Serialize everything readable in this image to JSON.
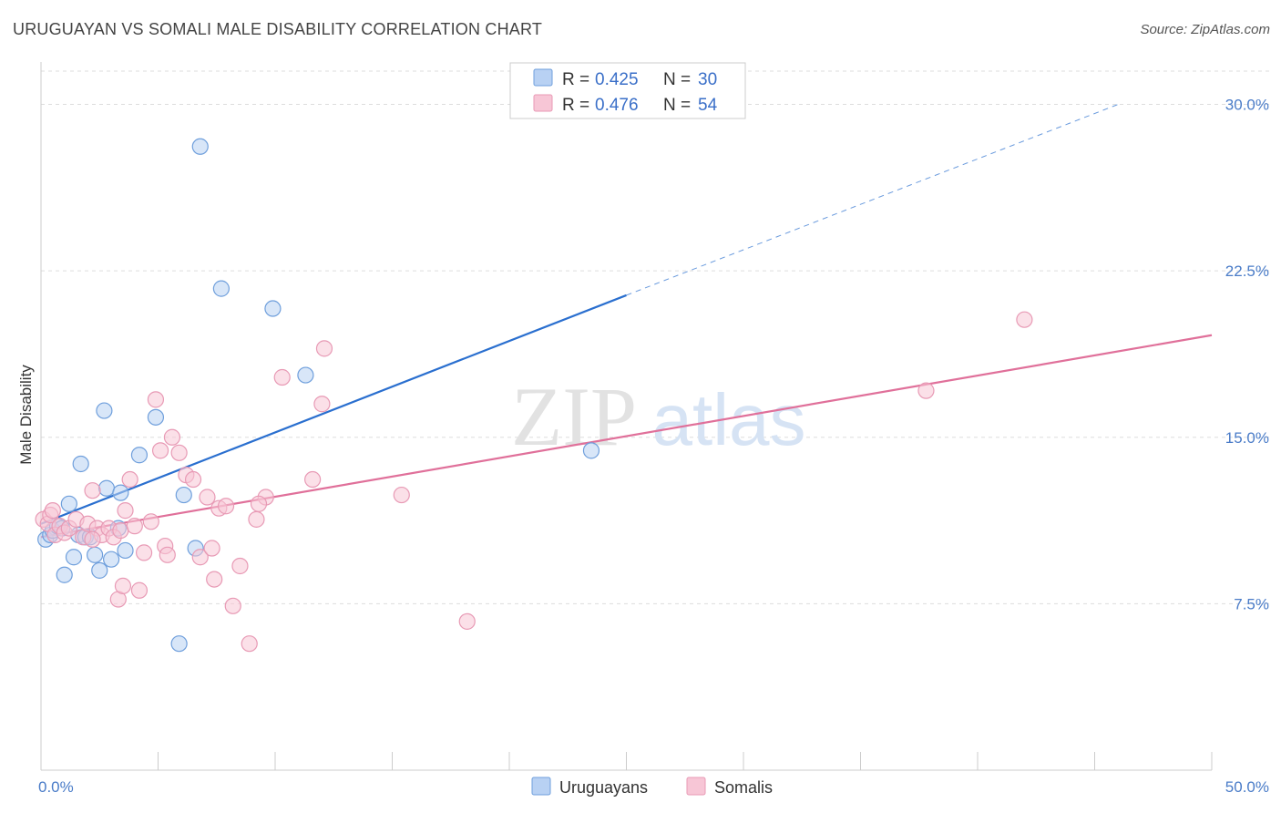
{
  "header": {
    "title": "URUGUAYAN VS SOMALI MALE DISABILITY CORRELATION CHART",
    "source": "Source: ZipAtlas.com"
  },
  "watermark": {
    "zip": "ZIP",
    "atlas": "atlas"
  },
  "colors": {
    "blue_fill": "#b8d1f3",
    "blue_stroke": "#6f9fdc",
    "blue_line": "#2a6fcf",
    "pink_fill": "#f7c6d6",
    "pink_stroke": "#e89ab5",
    "pink_line": "#e0709a",
    "grid": "#dddddd",
    "tick_label": "#4a7cc8"
  },
  "legend": {
    "rows": [
      {
        "r_label": "R = ",
        "r_value": "0.425",
        "n_label": "N = ",
        "n_value": "30"
      },
      {
        "r_label": "R = ",
        "r_value": "0.476",
        "n_label": "N = ",
        "n_value": "54"
      }
    ]
  },
  "bottom_legend": [
    "Uruguayans",
    "Somalis"
  ],
  "chart_data": {
    "type": "scatter",
    "title": "URUGUAYAN VS SOMALI MALE DISABILITY CORRELATION CHART",
    "xlabel": "",
    "ylabel": "Male Disability",
    "xlim": [
      0,
      50
    ],
    "ylim": [
      0,
      31.5
    ],
    "x_tick_labels": [
      {
        "value": 0,
        "label": "0.0%"
      },
      {
        "value": 50,
        "label": "50.0%"
      }
    ],
    "x_minor_ticks": [
      0,
      5,
      10,
      15,
      20,
      25,
      30,
      35,
      40,
      45,
      50
    ],
    "y_ticks": [
      {
        "value": 7.5,
        "label": "7.5%"
      },
      {
        "value": 15.0,
        "label": "15.0%"
      },
      {
        "value": 22.5,
        "label": "22.5%"
      },
      {
        "value": 30.0,
        "label": "30.0%"
      }
    ],
    "series": [
      {
        "name": "Uruguayans",
        "R": 0.425,
        "N": 30,
        "points": [
          [
            0.2,
            10.4
          ],
          [
            0.4,
            10.6
          ],
          [
            0.5,
            10.8
          ],
          [
            0.7,
            11.0
          ],
          [
            0.9,
            10.9
          ],
          [
            1.2,
            12.0
          ],
          [
            1.4,
            9.6
          ],
          [
            1.6,
            10.6
          ],
          [
            1.0,
            8.8
          ],
          [
            1.7,
            13.8
          ],
          [
            1.9,
            10.5
          ],
          [
            2.1,
            10.5
          ],
          [
            2.3,
            9.7
          ],
          [
            2.5,
            9.0
          ],
          [
            2.8,
            12.7
          ],
          [
            2.7,
            16.2
          ],
          [
            3.0,
            9.5
          ],
          [
            3.3,
            10.9
          ],
          [
            3.4,
            12.5
          ],
          [
            3.6,
            9.9
          ],
          [
            4.2,
            14.2
          ],
          [
            4.9,
            15.9
          ],
          [
            6.1,
            12.4
          ],
          [
            6.6,
            10.0
          ],
          [
            6.8,
            28.1
          ],
          [
            7.7,
            21.7
          ],
          [
            9.9,
            20.8
          ],
          [
            11.3,
            17.8
          ],
          [
            23.5,
            14.4
          ],
          [
            5.9,
            5.7
          ]
        ],
        "trend": {
          "x0": 0,
          "y0": 11.1,
          "x1": 25.0,
          "y1": 21.4,
          "dash_x1": 46.0,
          "dash_y1": 30.0
        }
      },
      {
        "name": "Somalis",
        "R": 0.476,
        "N": 54,
        "points": [
          [
            0.1,
            11.3
          ],
          [
            0.3,
            11.1
          ],
          [
            0.4,
            11.5
          ],
          [
            0.5,
            11.7
          ],
          [
            0.6,
            10.6
          ],
          [
            0.8,
            11.0
          ],
          [
            1.0,
            10.7
          ],
          [
            1.2,
            10.9
          ],
          [
            1.5,
            11.3
          ],
          [
            1.8,
            10.5
          ],
          [
            2.0,
            11.1
          ],
          [
            2.2,
            12.6
          ],
          [
            2.4,
            10.9
          ],
          [
            2.6,
            10.6
          ],
          [
            2.9,
            10.9
          ],
          [
            3.1,
            10.5
          ],
          [
            3.4,
            10.8
          ],
          [
            3.6,
            11.7
          ],
          [
            3.8,
            13.1
          ],
          [
            4.0,
            11.0
          ],
          [
            4.2,
            8.1
          ],
          [
            4.4,
            9.8
          ],
          [
            4.7,
            11.2
          ],
          [
            4.9,
            16.7
          ],
          [
            5.1,
            14.4
          ],
          [
            5.3,
            10.1
          ],
          [
            5.6,
            15.0
          ],
          [
            5.9,
            14.3
          ],
          [
            6.2,
            13.3
          ],
          [
            6.5,
            13.1
          ],
          [
            6.8,
            9.6
          ],
          [
            7.1,
            12.3
          ],
          [
            7.4,
            8.6
          ],
          [
            7.6,
            11.8
          ],
          [
            7.9,
            11.9
          ],
          [
            8.2,
            7.4
          ],
          [
            8.5,
            9.2
          ],
          [
            8.9,
            5.7
          ],
          [
            9.2,
            11.3
          ],
          [
            9.6,
            12.3
          ],
          [
            10.3,
            17.7
          ],
          [
            11.6,
            13.1
          ],
          [
            12.0,
            16.5
          ],
          [
            12.1,
            19.0
          ],
          [
            15.4,
            12.4
          ],
          [
            18.2,
            6.7
          ],
          [
            37.8,
            17.1
          ],
          [
            42.0,
            20.3
          ],
          [
            3.3,
            7.7
          ],
          [
            2.2,
            10.4
          ],
          [
            3.5,
            8.3
          ],
          [
            5.4,
            9.7
          ],
          [
            7.3,
            10.0
          ],
          [
            9.3,
            12.0
          ]
        ],
        "trend": {
          "x0": 0,
          "y0": 10.5,
          "x1": 50,
          "y1": 19.6
        }
      }
    ]
  }
}
